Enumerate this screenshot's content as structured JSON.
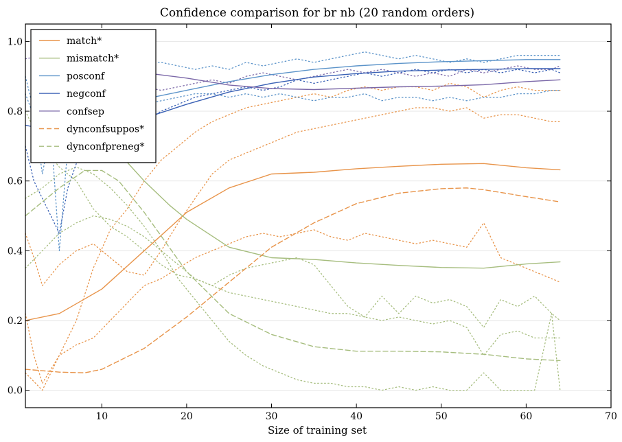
{
  "chart_data": {
    "type": "line",
    "title": "Confidence comparison for br nb (20 random orders)",
    "xlabel": "Size of training set",
    "ylabel": "",
    "xlim": [
      1,
      70
    ],
    "ylim": [
      -0.05,
      1.05
    ],
    "xticks": [
      10,
      20,
      30,
      40,
      50,
      60,
      70
    ],
    "yticks": [
      0.0,
      0.2,
      0.4,
      0.6,
      0.8,
      1.0
    ],
    "ytick_labels": [
      "0.0",
      "0.2",
      "0.4",
      "0.6",
      "0.8",
      "1.0"
    ],
    "grid": "horizontal",
    "legend_position": "top-left",
    "series": [
      {
        "name": "match*",
        "color": "#e8944a",
        "style": "solid",
        "x": [
          1,
          5,
          10,
          15,
          20,
          25,
          30,
          35,
          40,
          45,
          50,
          55,
          60,
          64
        ],
        "y": [
          0.2,
          0.22,
          0.29,
          0.4,
          0.51,
          0.58,
          0.62,
          0.625,
          0.635,
          0.642,
          0.648,
          0.65,
          0.638,
          0.632
        ]
      },
      {
        "name": "mismatch*",
        "color": "#a6bd7e",
        "style": "solid",
        "x": [
          10,
          12,
          15,
          18,
          20,
          25,
          30,
          35,
          40,
          45,
          50,
          55,
          60,
          64
        ],
        "y": [
          0.72,
          0.68,
          0.6,
          0.53,
          0.49,
          0.41,
          0.38,
          0.375,
          0.365,
          0.358,
          0.352,
          0.35,
          0.362,
          0.368
        ]
      },
      {
        "name": "posconf",
        "color": "#5b93c9",
        "style": "solid",
        "x": [
          10,
          15,
          20,
          25,
          30,
          35,
          40,
          45,
          50,
          55,
          60,
          64
        ],
        "y": [
          0.8,
          0.835,
          0.86,
          0.885,
          0.905,
          0.92,
          0.93,
          0.937,
          0.942,
          0.945,
          0.948,
          0.948
        ]
      },
      {
        "name": "negconf",
        "color": "#3a61b5",
        "style": "solid",
        "x": [
          1,
          5,
          10,
          15,
          20,
          25,
          30,
          35,
          40,
          45,
          50,
          55,
          60,
          64
        ],
        "y": [
          0.76,
          0.74,
          0.73,
          0.78,
          0.82,
          0.855,
          0.88,
          0.898,
          0.908,
          0.915,
          0.918,
          0.92,
          0.922,
          0.922
        ]
      },
      {
        "name": "confsep",
        "color": "#7b68a8",
        "style": "solid",
        "x": [
          15,
          20,
          25,
          30,
          35,
          40,
          45,
          50,
          55,
          60,
          64
        ],
        "y": [
          0.91,
          0.895,
          0.875,
          0.865,
          0.862,
          0.866,
          0.87,
          0.872,
          0.876,
          0.885,
          0.89
        ]
      },
      {
        "name": "dynconfsuppos*",
        "color": "#e8944a",
        "style": "dashed",
        "x": [
          1,
          5,
          8,
          10,
          15,
          20,
          25,
          30,
          35,
          40,
          45,
          50,
          53,
          55,
          60,
          64
        ],
        "y": [
          0.06,
          0.052,
          0.05,
          0.06,
          0.12,
          0.21,
          0.31,
          0.41,
          0.48,
          0.535,
          0.565,
          0.578,
          0.58,
          0.575,
          0.555,
          0.54
        ]
      },
      {
        "name": "dynconfpreneg*",
        "color": "#a6bd7e",
        "style": "dashed",
        "x": [
          1,
          3,
          5,
          8,
          10,
          12,
          15,
          20,
          25,
          30,
          35,
          40,
          45,
          50,
          55,
          60,
          64
        ],
        "y": [
          0.5,
          0.54,
          0.58,
          0.63,
          0.63,
          0.6,
          0.51,
          0.34,
          0.22,
          0.16,
          0.125,
          0.112,
          0.112,
          0.11,
          0.103,
          0.09,
          0.085
        ]
      },
      {
        "color": "#e8944a",
        "style": "dotted",
        "x": [
          1,
          2,
          3,
          5,
          7,
          9,
          11,
          13,
          15,
          17,
          19,
          21,
          23,
          25,
          27,
          29,
          31,
          33,
          35,
          37,
          39,
          41,
          43,
          45,
          47,
          49,
          51,
          53,
          55,
          57,
          59,
          61,
          63,
          64
        ],
        "y": [
          0.45,
          0.38,
          0.3,
          0.36,
          0.4,
          0.42,
          0.38,
          0.34,
          0.33,
          0.4,
          0.48,
          0.55,
          0.62,
          0.66,
          0.68,
          0.7,
          0.72,
          0.74,
          0.75,
          0.76,
          0.77,
          0.78,
          0.79,
          0.8,
          0.81,
          0.81,
          0.8,
          0.81,
          0.78,
          0.79,
          0.79,
          0.78,
          0.77,
          0.77
        ]
      },
      {
        "color": "#e8944a",
        "style": "dotted",
        "x": [
          1,
          2,
          3,
          5,
          7,
          9,
          11,
          13,
          15,
          17,
          19,
          21,
          23,
          25,
          27,
          29,
          31,
          33,
          35,
          37,
          39,
          41,
          43,
          45,
          47,
          49,
          51,
          53,
          55,
          57,
          59,
          61,
          63,
          64
        ],
        "y": [
          0.22,
          0.1,
          0.02,
          0.1,
          0.2,
          0.35,
          0.46,
          0.52,
          0.6,
          0.66,
          0.7,
          0.74,
          0.77,
          0.79,
          0.81,
          0.82,
          0.83,
          0.84,
          0.85,
          0.84,
          0.86,
          0.87,
          0.86,
          0.87,
          0.87,
          0.86,
          0.88,
          0.87,
          0.84,
          0.86,
          0.87,
          0.86,
          0.86,
          0.86
        ]
      },
      {
        "color": "#e8944a",
        "style": "dotted",
        "x": [
          1,
          3,
          5,
          7,
          9,
          11,
          13,
          15,
          17,
          19,
          21,
          23,
          25,
          27,
          29,
          31,
          33,
          35,
          37,
          39,
          41,
          43,
          45,
          47,
          49,
          51,
          53,
          55,
          57,
          59,
          61,
          63,
          64
        ],
        "y": [
          0.05,
          0.0,
          0.1,
          0.13,
          0.15,
          0.2,
          0.25,
          0.3,
          0.32,
          0.35,
          0.38,
          0.4,
          0.42,
          0.44,
          0.45,
          0.44,
          0.45,
          0.46,
          0.44,
          0.43,
          0.45,
          0.44,
          0.43,
          0.42,
          0.43,
          0.42,
          0.41,
          0.48,
          0.38,
          0.36,
          0.34,
          0.32,
          0.31
        ]
      },
      {
        "color": "#a6bd7e",
        "style": "dotted",
        "x": [
          1,
          3,
          5,
          7,
          9,
          11,
          13,
          15,
          17,
          19,
          21,
          23,
          25,
          27,
          29,
          31,
          33,
          35,
          37,
          39,
          41,
          43,
          45,
          47,
          49,
          51,
          53,
          55,
          57,
          59,
          61,
          63,
          64
        ],
        "y": [
          0.8,
          0.7,
          0.64,
          0.6,
          0.52,
          0.47,
          0.44,
          0.4,
          0.36,
          0.33,
          0.32,
          0.3,
          0.28,
          0.27,
          0.26,
          0.25,
          0.24,
          0.23,
          0.22,
          0.22,
          0.21,
          0.2,
          0.21,
          0.2,
          0.19,
          0.2,
          0.18,
          0.1,
          0.16,
          0.17,
          0.15,
          0.15,
          0.15
        ]
      },
      {
        "color": "#a6bd7e",
        "style": "dotted",
        "x": [
          1,
          3,
          5,
          7,
          9,
          11,
          13,
          15,
          17,
          19,
          21,
          23,
          25,
          27,
          29,
          31,
          33,
          35,
          37,
          39,
          41,
          43,
          45,
          47,
          49,
          51,
          53,
          55,
          57,
          59,
          61,
          63,
          64
        ],
        "y": [
          0.55,
          0.58,
          0.62,
          0.64,
          0.62,
          0.58,
          0.53,
          0.47,
          0.4,
          0.32,
          0.26,
          0.2,
          0.14,
          0.1,
          0.07,
          0.05,
          0.03,
          0.02,
          0.02,
          0.01,
          0.01,
          0.0,
          0.01,
          0.0,
          0.01,
          0.0,
          0.0,
          0.05,
          0.0,
          0.0,
          0.0,
          0.22,
          0.0
        ]
      },
      {
        "color": "#a6bd7e",
        "style": "dotted",
        "x": [
          1,
          3,
          5,
          7,
          9,
          11,
          13,
          15,
          17,
          19,
          21,
          23,
          25,
          27,
          29,
          31,
          33,
          35,
          37,
          39,
          41,
          43,
          45,
          47,
          49,
          51,
          53,
          55,
          57,
          59,
          61,
          63,
          64
        ],
        "y": [
          0.35,
          0.4,
          0.45,
          0.48,
          0.5,
          0.49,
          0.47,
          0.44,
          0.4,
          0.36,
          0.32,
          0.3,
          0.33,
          0.35,
          0.36,
          0.37,
          0.38,
          0.36,
          0.3,
          0.24,
          0.21,
          0.27,
          0.22,
          0.27,
          0.25,
          0.26,
          0.24,
          0.18,
          0.26,
          0.24,
          0.27,
          0.22,
          0.2
        ]
      },
      {
        "color": "#5b93c9",
        "style": "dotted",
        "x": [
          1,
          2,
          3,
          4,
          5,
          6,
          7,
          9,
          11,
          13,
          15,
          17,
          19,
          21,
          23,
          25,
          27,
          29,
          31,
          33,
          35,
          37,
          39,
          41,
          43,
          45,
          47,
          49,
          51,
          53,
          55,
          57,
          59,
          61,
          63,
          64
        ],
        "y": [
          0.9,
          0.8,
          0.62,
          0.75,
          0.4,
          0.7,
          0.82,
          0.88,
          0.9,
          0.92,
          0.94,
          0.94,
          0.93,
          0.92,
          0.93,
          0.92,
          0.94,
          0.93,
          0.94,
          0.95,
          0.94,
          0.95,
          0.96,
          0.97,
          0.96,
          0.95,
          0.96,
          0.95,
          0.94,
          0.95,
          0.94,
          0.95,
          0.96,
          0.96,
          0.96,
          0.96
        ]
      },
      {
        "color": "#3a61b5",
        "style": "dotted",
        "x": [
          1,
          2,
          3,
          4,
          5,
          6,
          7,
          9,
          11,
          13,
          15,
          17,
          19,
          21,
          23,
          25,
          27,
          29,
          31,
          33,
          35,
          37,
          39,
          41,
          43,
          45,
          47,
          49,
          51,
          53,
          55,
          57,
          59,
          61,
          63,
          64
        ],
        "y": [
          0.7,
          0.6,
          0.55,
          0.5,
          0.45,
          0.58,
          0.65,
          0.7,
          0.72,
          0.74,
          0.77,
          0.8,
          0.82,
          0.84,
          0.85,
          0.86,
          0.87,
          0.86,
          0.87,
          0.89,
          0.88,
          0.89,
          0.9,
          0.91,
          0.9,
          0.91,
          0.92,
          0.91,
          0.92,
          0.91,
          0.92,
          0.91,
          0.92,
          0.91,
          0.92,
          0.91
        ]
      },
      {
        "color": "#5b93c9",
        "style": "dotted",
        "x": [
          1,
          3,
          5,
          7,
          9,
          11,
          13,
          15,
          17,
          19,
          21,
          23,
          25,
          27,
          29,
          31,
          33,
          35,
          37,
          39,
          41,
          43,
          45,
          47,
          49,
          51,
          53,
          55,
          57,
          59,
          61,
          63,
          64
        ],
        "y": [
          0.85,
          0.72,
          0.66,
          0.68,
          0.74,
          0.78,
          0.8,
          0.82,
          0.83,
          0.84,
          0.85,
          0.85,
          0.84,
          0.85,
          0.84,
          0.85,
          0.84,
          0.83,
          0.84,
          0.84,
          0.85,
          0.83,
          0.84,
          0.84,
          0.83,
          0.84,
          0.83,
          0.84,
          0.84,
          0.85,
          0.85,
          0.86,
          0.86
        ]
      },
      {
        "color": "#7b68a8",
        "style": "dotted",
        "x": [
          1,
          3,
          5,
          7,
          9,
          11,
          13,
          15,
          17,
          19,
          21,
          23,
          25,
          27,
          29,
          31,
          33,
          35,
          37,
          39,
          41,
          43,
          45,
          47,
          49,
          51,
          53,
          55,
          57,
          59,
          61,
          63,
          64
        ],
        "y": [
          0.95,
          0.96,
          0.96,
          0.94,
          0.92,
          0.9,
          0.88,
          0.87,
          0.86,
          0.87,
          0.88,
          0.89,
          0.88,
          0.9,
          0.91,
          0.9,
          0.89,
          0.9,
          0.91,
          0.92,
          0.91,
          0.92,
          0.91,
          0.9,
          0.91,
          0.9,
          0.92,
          0.91,
          0.92,
          0.93,
          0.92,
          0.92,
          0.93
        ]
      }
    ]
  }
}
